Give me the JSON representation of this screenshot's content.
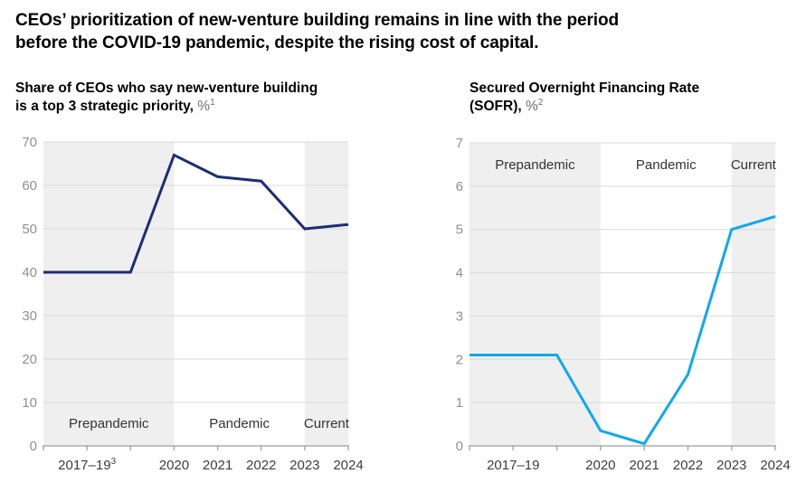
{
  "header": {
    "title_line1": "CEOs’ prioritization of new-venture building remains in line with the period",
    "title_line2": "before the COVID-19 pandemic, despite the rising cost of capital."
  },
  "colors": {
    "navy_line": "#1b2d76",
    "light_blue_line": "#0fa8ef",
    "band_fill": "#efefef",
    "gridline": "#d9d9d9",
    "axis": "#9e9e9e",
    "ytick_label": "#8f8f8f",
    "xtick_label": "#3d3d3d",
    "band_label": "#333333",
    "title_text": "#000000",
    "unit_text": "#6e6e6e"
  },
  "chart_data": [
    {
      "type": "line",
      "title": "Share of CEOs who say new-venture building is a top 3 strategic priority, %",
      "subtitle": {
        "line1": "Share of CEOs who say new-venture building",
        "line2_prefix": "is a top 3 strategic priority, ",
        "unit": "%",
        "unit_sup": "1"
      },
      "x": [
        "2017",
        "2018",
        "2019",
        "2020",
        "2021",
        "2022",
        "2023",
        "2024"
      ],
      "values": [
        40,
        40,
        40,
        67,
        62,
        61,
        50,
        51
      ],
      "ylim": [
        0,
        70
      ],
      "yticks": [
        0,
        10,
        20,
        30,
        40,
        50,
        60,
        70
      ],
      "xlabel": "",
      "ylabel": "",
      "grid": true,
      "legend": "none",
      "xtick_labels": [
        {
          "index": 1,
          "label": "2017–19",
          "sup": "3"
        },
        {
          "index": 3,
          "label": "2020",
          "sup": ""
        },
        {
          "index": 4,
          "label": "2021",
          "sup": ""
        },
        {
          "index": 5,
          "label": "2022",
          "sup": ""
        },
        {
          "index": 6,
          "label": "2023",
          "sup": ""
        },
        {
          "index": 7,
          "label": "2024",
          "sup": ""
        }
      ],
      "bands": [
        {
          "label": "Prepandemic",
          "from_index": 0,
          "to_index": 3,
          "shaded": true
        },
        {
          "label": "Pandemic",
          "from_index": 3,
          "to_index": 6,
          "shaded": false
        },
        {
          "label": "Current",
          "from_index": 6,
          "to_index": 7,
          "shaded": true
        }
      ],
      "band_label_position": "bottom",
      "line_color": "#1b2d76"
    },
    {
      "type": "line",
      "title": "Secured Overnight Financing Rate (SOFR), %",
      "subtitle": {
        "line1": "Secured Overnight Financing Rate",
        "line2_prefix": "(SOFR), ",
        "unit": "%",
        "unit_sup": "2"
      },
      "x": [
        "2017",
        "2018",
        "2019",
        "2020",
        "2021",
        "2022",
        "2023",
        "2024"
      ],
      "values": [
        2.1,
        2.1,
        2.1,
        0.35,
        0.05,
        1.65,
        5.0,
        5.3
      ],
      "ylim": [
        0,
        7
      ],
      "yticks": [
        0,
        1,
        2,
        3,
        4,
        5,
        6,
        7
      ],
      "xlabel": "",
      "ylabel": "",
      "grid": true,
      "legend": "none",
      "xtick_labels": [
        {
          "index": 1,
          "label": "2017–19",
          "sup": ""
        },
        {
          "index": 3,
          "label": "2020",
          "sup": ""
        },
        {
          "index": 4,
          "label": "2021",
          "sup": ""
        },
        {
          "index": 5,
          "label": "2022",
          "sup": ""
        },
        {
          "index": 6,
          "label": "2023",
          "sup": ""
        },
        {
          "index": 7,
          "label": "2024",
          "sup": ""
        }
      ],
      "bands": [
        {
          "label": "Prepandemic",
          "from_index": 0,
          "to_index": 3,
          "shaded": true
        },
        {
          "label": "Pandemic",
          "from_index": 3,
          "to_index": 6,
          "shaded": false
        },
        {
          "label": "Current",
          "from_index": 6,
          "to_index": 7,
          "shaded": true
        }
      ],
      "band_label_position": "top",
      "line_color": "#0fa8ef"
    }
  ]
}
